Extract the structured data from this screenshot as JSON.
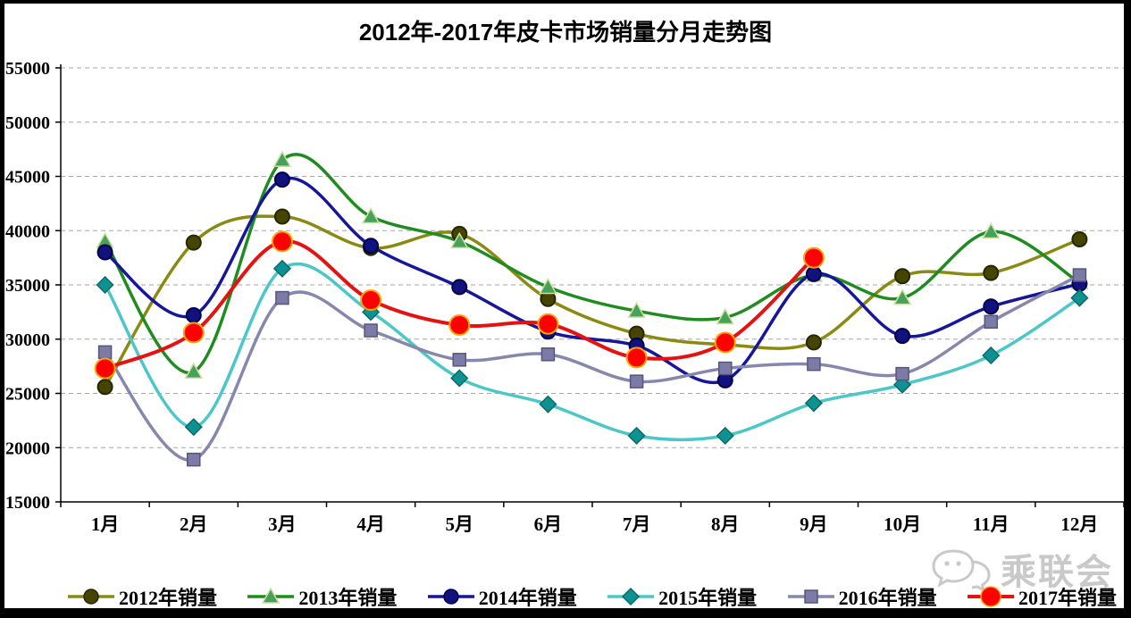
{
  "title": "2012年-2017年皮卡市场销量分月走势图",
  "watermark": "乘联会",
  "chart_data": {
    "type": "line",
    "title": "2012年-2017年皮卡市场销量分月走势图",
    "categories": [
      "1月",
      "2月",
      "3月",
      "4月",
      "5月",
      "6月",
      "7月",
      "8月",
      "9月",
      "10月",
      "11月",
      "12月"
    ],
    "ylim": [
      15000,
      55000
    ],
    "ytick_step": 5000,
    "y_ticks": [
      15000,
      20000,
      25000,
      30000,
      35000,
      40000,
      45000,
      50000,
      55000
    ],
    "grid": "horizontal-dashed",
    "legend_position": "bottom",
    "line_smoothing": true,
    "series": [
      {
        "name": "2012年销量",
        "color": "#8a8a12",
        "marker": "circle",
        "marker_color": "#454500",
        "marker_stroke": "#262600",
        "marker_size": 8,
        "line_width": 3.5,
        "values": [
          25600,
          38900,
          41300,
          38400,
          39700,
          33700,
          30500,
          29500,
          29700,
          35800,
          36100,
          39200
        ]
      },
      {
        "name": "2013年销量",
        "color": "#1e8c1e",
        "marker": "triangle",
        "marker_color": "#44a25e",
        "marker_stroke": "#cfe09a",
        "marker_size": 9,
        "line_width": 3.5,
        "values": [
          39000,
          27000,
          46500,
          41300,
          39000,
          34800,
          32600,
          32000,
          35900,
          33800,
          39900,
          35200
        ]
      },
      {
        "name": "2014年销量",
        "color": "#16169c",
        "marker": "circle",
        "marker_color": "#12127e",
        "marker_stroke": "#00004c",
        "marker_size": 8,
        "line_width": 3.5,
        "values": [
          38000,
          32200,
          44700,
          38600,
          34800,
          30700,
          29400,
          26200,
          36000,
          30300,
          33000,
          35100
        ]
      },
      {
        "name": "2015年销量",
        "color": "#4cc7c7",
        "marker": "diamond",
        "marker_color": "#0e9191",
        "marker_stroke": "#0a6a6a",
        "marker_size": 9,
        "line_width": 3.5,
        "values": [
          35000,
          21900,
          36500,
          32500,
          26400,
          24000,
          21100,
          21100,
          24100,
          25800,
          28500,
          33800
        ]
      },
      {
        "name": "2016年销量",
        "color": "#8787ae",
        "marker": "square",
        "marker_color": "#7b7ba6",
        "marker_stroke": "#55557e",
        "marker_size": 7,
        "line_width": 3.5,
        "values": [
          28800,
          18900,
          33800,
          30800,
          28100,
          28600,
          26100,
          27300,
          27700,
          26800,
          31600,
          35900
        ]
      },
      {
        "name": "2017年销量",
        "color": "#e51212",
        "marker": "circle",
        "marker_color": "#ff0000",
        "marker_stroke": "#ffa500",
        "marker_size": 11,
        "line_width": 4,
        "values": [
          27300,
          30600,
          39000,
          33600,
          31300,
          31400,
          28300,
          29700,
          37500,
          null,
          null,
          null
        ]
      }
    ]
  }
}
